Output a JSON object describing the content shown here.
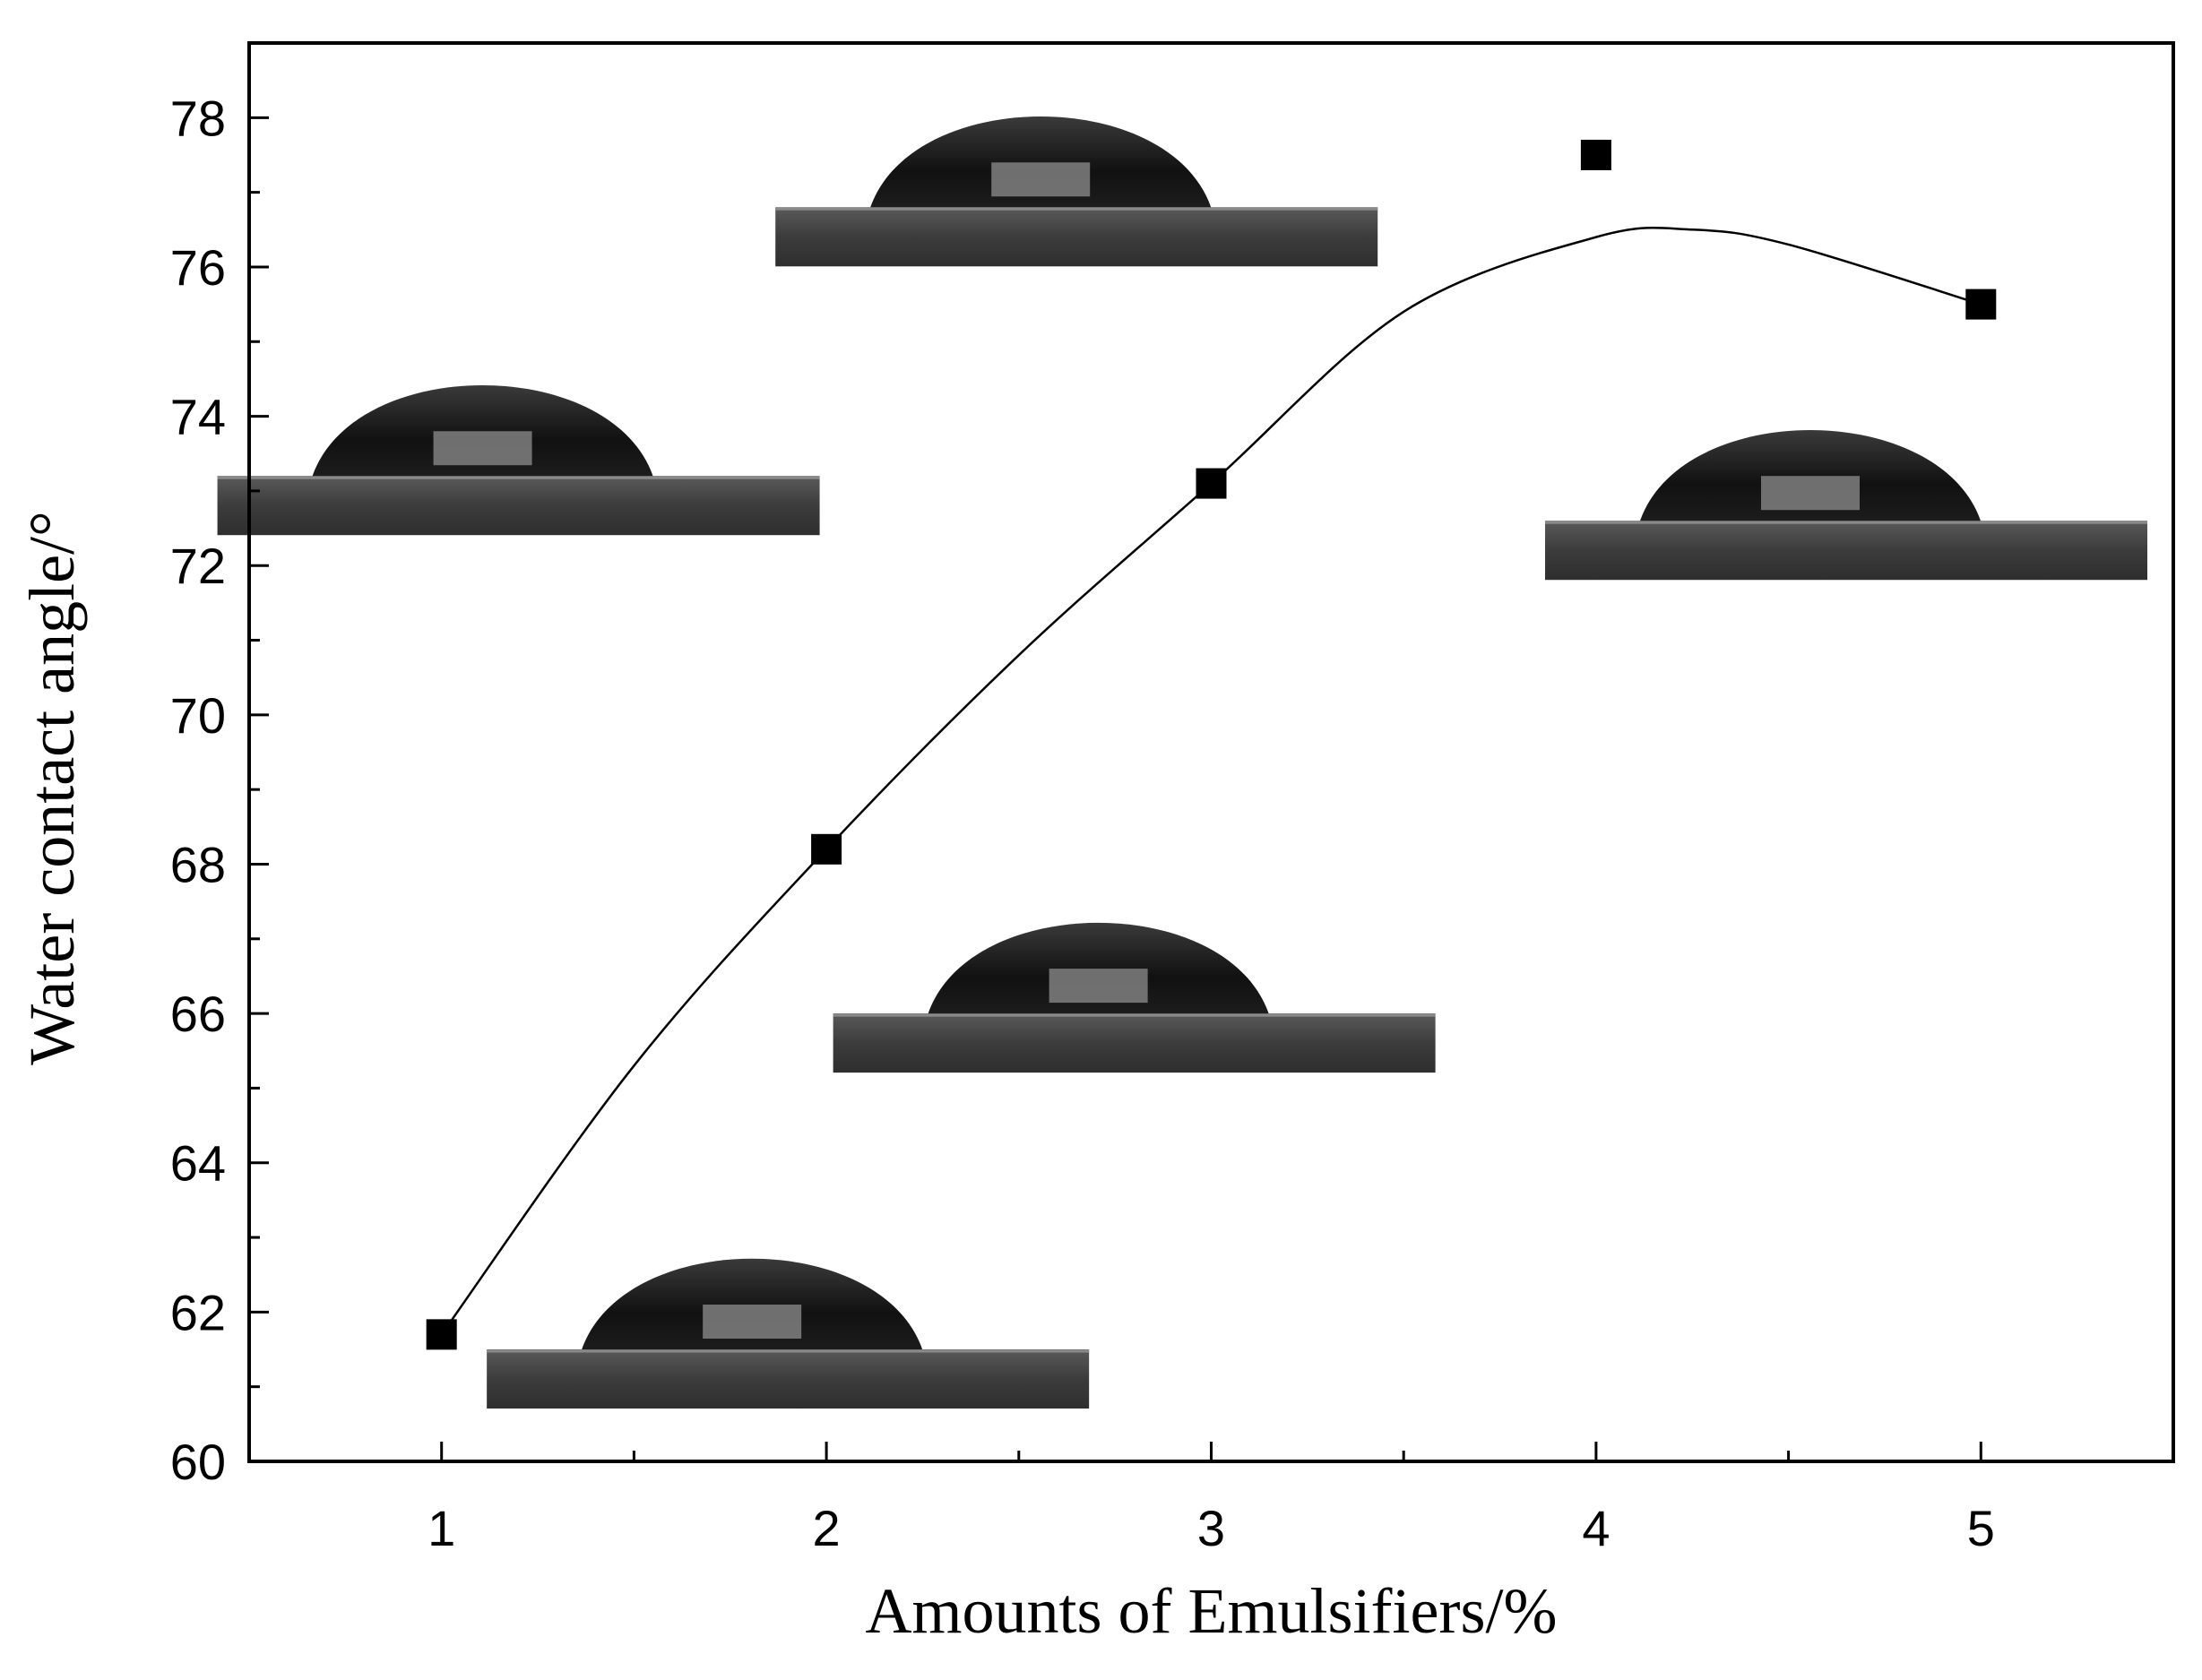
{
  "chart_data": {
    "type": "scatter",
    "xlabel": "Amounts of Emulsifiers/%",
    "ylabel": "Water contact angle/°",
    "xlim": [
      0.5,
      5.5
    ],
    "ylim": [
      60,
      79
    ],
    "x_ticks": [
      1,
      2,
      3,
      4,
      5
    ],
    "y_ticks": [
      60,
      62,
      64,
      66,
      68,
      70,
      72,
      74,
      76,
      78
    ],
    "grid": false,
    "legend": "none",
    "series": [
      {
        "marker": "square",
        "color": "#000000",
        "x": [
          1,
          2,
          3,
          4,
          5
        ],
        "y": [
          61.7,
          68.2,
          73.1,
          77.5,
          75.5
        ]
      }
    ],
    "fit_curve": {
      "style": "smooth line",
      "x": [
        1,
        1.5,
        2,
        2.5,
        3,
        3.5,
        4,
        4.25,
        4.5,
        5
      ],
      "y": [
        61.7,
        65.3,
        68.2,
        70.8,
        73.1,
        75.4,
        76.4,
        76.5,
        76.3,
        75.5
      ]
    },
    "insets": [
      {
        "name": "droplet-photo",
        "at_x": 1.9,
        "at_y": 61.5
      },
      {
        "name": "droplet-photo",
        "at_x": 2.8,
        "at_y": 66.0
      },
      {
        "name": "droplet-photo",
        "at_x": 1.2,
        "at_y": 73.2
      },
      {
        "name": "droplet-photo",
        "at_x": 2.65,
        "at_y": 76.8
      },
      {
        "name": "droplet-photo",
        "at_x": 4.65,
        "at_y": 72.6
      }
    ]
  }
}
